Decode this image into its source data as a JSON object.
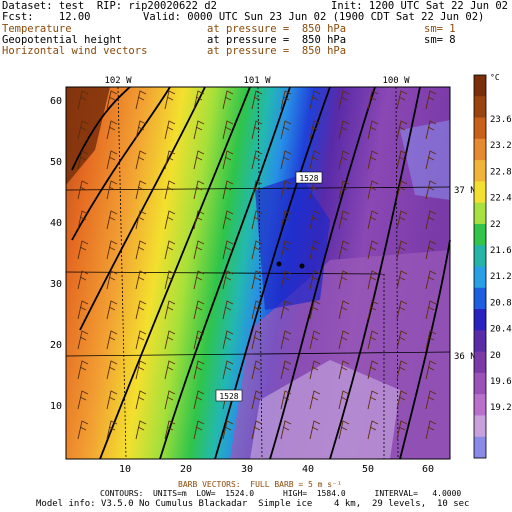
{
  "header": {
    "dataset": "Dataset: test  RIP: rip20020622 d2",
    "init": "Init: 1200 UTC Sat 22 Jun 02",
    "fcst": "Fcst:    12.00",
    "valid": "Valid: 0000 UTC Sun 23 Jun 02 (1900 CDT Sat 22 Jun 02)",
    "fields": [
      {
        "name": "Temperature",
        "level": "at pressure =  850 hPa",
        "sm": "sm= 1"
      },
      {
        "name": "Geopotential height",
        "level": "at pressure =  850 hPa",
        "sm": "sm= 8"
      },
      {
        "name": "Horizontal wind vectors",
        "level": "at pressure =  850 hPa",
        "sm": ""
      }
    ]
  },
  "map": {
    "lon_labels": [
      "102 W",
      "101 W",
      "100 W"
    ],
    "lat_labels": [
      "37 N",
      "36 N"
    ],
    "x_ticks": [
      "10",
      "20",
      "30",
      "40",
      "50",
      "60"
    ],
    "y_ticks": [
      "60",
      "50",
      "40",
      "30",
      "20",
      "10"
    ],
    "contour_labels": [
      "1528",
      "1528"
    ]
  },
  "colorbar": {
    "unit": "°C",
    "labels": [
      "23.6",
      "23.2",
      "22.8",
      "22.4",
      "22",
      "21.6",
      "21.2",
      "20.8",
      "20.4",
      "20",
      "19.6",
      "19.2"
    ],
    "colors": [
      "#7a2f0a",
      "#9b4410",
      "#c8601a",
      "#e58a2e",
      "#f2b33a",
      "#f3df30",
      "#a8e040",
      "#33c44a",
      "#23b5a6",
      "#28a0e6",
      "#1e5ee0",
      "#2a22c0",
      "#5a2aa8",
      "#7a3aa8",
      "#9a52b8",
      "#b870cc",
      "#c8a0dd",
      "#8a8ae8"
    ]
  },
  "footer": {
    "barbs": "BARB VECTORS:  FULL BARB = 5 m s⁻¹",
    "contours": "CONTOURS:  UNITS=m  LOW=  1524.0      HIGH=  1584.0      INTERVAL=   4.0000",
    "model": "Model info: V3.5.0 No Cumulus Blackadar  Simple ice    4 km,  29 levels,  10 sec"
  }
}
